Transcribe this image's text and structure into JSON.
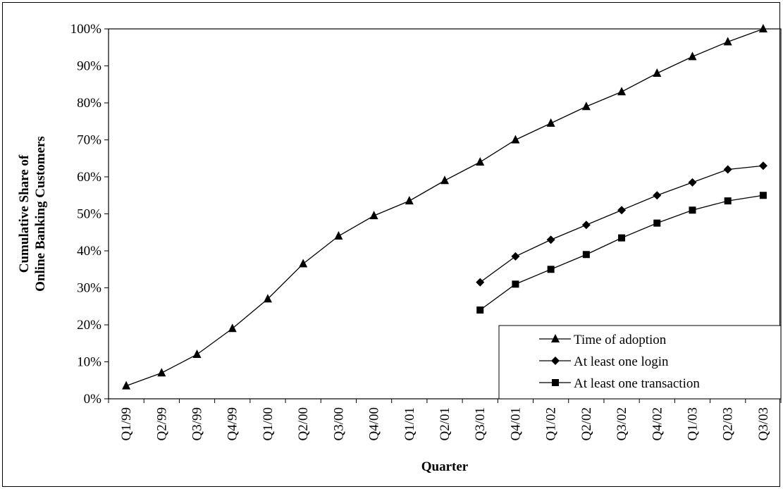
{
  "chart_data": {
    "type": "line",
    "title": "",
    "xlabel": "Quarter",
    "ylabel_lines": [
      "Cumulative Share of",
      "Online Banking Customers"
    ],
    "ylim": [
      0,
      100
    ],
    "y_ticks": [
      "0%",
      "10%",
      "20%",
      "30%",
      "40%",
      "50%",
      "60%",
      "70%",
      "80%",
      "90%",
      "100%"
    ],
    "categories": [
      "Q1/99",
      "Q2/99",
      "Q3/99",
      "Q4/99",
      "Q1/00",
      "Q2/00",
      "Q3/00",
      "Q4/00",
      "Q1/01",
      "Q2/01",
      "Q3/01",
      "Q4/01",
      "Q1/02",
      "Q2/02",
      "Q3/02",
      "Q4/02",
      "Q1/03",
      "Q2/03",
      "Q3/03"
    ],
    "grid": false,
    "legend_position": "bottom-right",
    "series": [
      {
        "name": "Time of adoption",
        "marker": "triangle",
        "values": [
          3.5,
          7,
          12,
          19,
          27,
          36.5,
          44,
          49.5,
          53.5,
          59,
          64,
          70,
          74.5,
          79,
          83,
          88,
          92.5,
          96.5,
          100
        ]
      },
      {
        "name": "At least one login",
        "marker": "diamond",
        "values": [
          null,
          null,
          null,
          null,
          null,
          null,
          null,
          null,
          null,
          null,
          31.5,
          38.5,
          43,
          47,
          51,
          55,
          58.5,
          62,
          63
        ]
      },
      {
        "name": "At least one transaction",
        "marker": "square",
        "values": [
          null,
          null,
          null,
          null,
          null,
          null,
          null,
          null,
          null,
          null,
          24,
          31,
          35,
          39,
          43.5,
          47.5,
          51,
          53.5,
          55
        ]
      }
    ]
  }
}
